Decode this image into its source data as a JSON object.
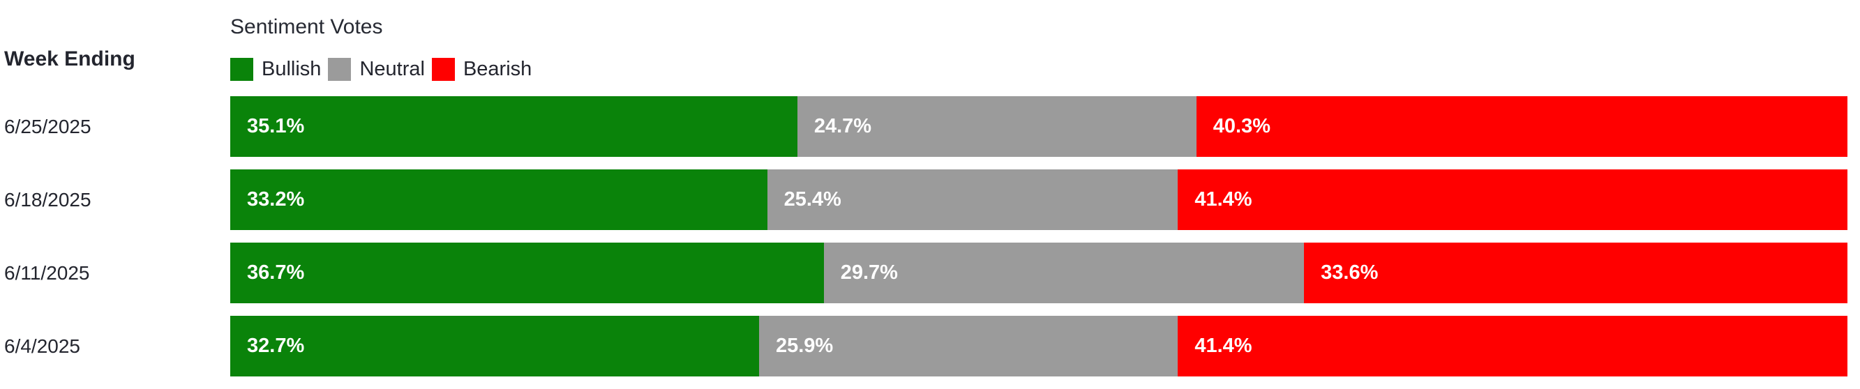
{
  "page": {
    "background": "#ffffff",
    "text_color": "#23252e"
  },
  "row_axis": {
    "header_label": "Week Ending"
  },
  "chart": {
    "title": "Sentiment Votes",
    "legend": [
      {
        "label": "Bullish",
        "color": "#0a830a"
      },
      {
        "label": "Neutral",
        "color": "#9b9b9b"
      },
      {
        "label": "Bearish",
        "color": "#ff0000"
      }
    ]
  },
  "chart_data": {
    "type": "bar",
    "orientation": "horizontal",
    "stacked": true,
    "unit": "%",
    "title": "Sentiment Votes",
    "row_axis_label": "Week Ending",
    "categories": [
      "6/25/2025",
      "6/18/2025",
      "6/11/2025",
      "6/4/2025"
    ],
    "series": [
      {
        "name": "Bullish",
        "color": "#0a830a",
        "values": [
          35.1,
          33.2,
          36.7,
          32.7
        ]
      },
      {
        "name": "Neutral",
        "color": "#9b9b9b",
        "values": [
          24.7,
          25.4,
          29.7,
          25.9
        ]
      },
      {
        "name": "Bearish",
        "color": "#ff0000",
        "values": [
          40.3,
          41.4,
          33.6,
          41.4
        ]
      }
    ],
    "bar_labels": [
      [
        "35.1%",
        "24.7%",
        "40.3%"
      ],
      [
        "33.2%",
        "25.4%",
        "41.4%"
      ],
      [
        "36.7%",
        "29.7%",
        "33.6%"
      ],
      [
        "32.7%",
        "25.9%",
        "41.4%"
      ]
    ],
    "xlim": [
      0,
      100
    ],
    "grid": false,
    "axes_visible": false,
    "legend_position": "top-left",
    "value_label_position": "inside-start",
    "value_label_color": "#ffffff"
  }
}
